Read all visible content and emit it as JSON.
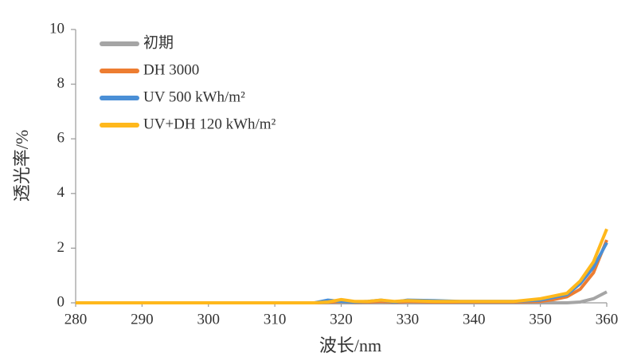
{
  "chart_data": {
    "type": "line",
    "x_label": "波长/nm",
    "y_label": "透光率/%",
    "x": [
      280,
      290,
      300,
      310,
      316,
      318,
      320,
      322,
      324,
      326,
      328,
      330,
      334,
      338,
      342,
      346,
      350,
      352,
      354,
      356,
      358,
      360
    ],
    "series": [
      {
        "name": "初期",
        "color": "#a5a5a5",
        "values": [
          0,
          0,
          0,
          0,
          0,
          0,
          0,
          0,
          0,
          0,
          0,
          0,
          0,
          0,
          0,
          0,
          0,
          0,
          0,
          0.03,
          0.15,
          0.4
        ]
      },
      {
        "name": "DH 3000",
        "color": "#ed7d31",
        "values": [
          0,
          0,
          0,
          0,
          0,
          0.02,
          0.05,
          0.02,
          0.03,
          0.05,
          0.02,
          0.05,
          0.03,
          0.03,
          0.03,
          0.03,
          0.05,
          0.12,
          0.22,
          0.5,
          1.1,
          2.3
        ]
      },
      {
        "name": "UV 500 kWh/m²",
        "color": "#4a8fd6",
        "values": [
          0,
          0,
          0,
          0,
          0,
          0.1,
          0.05,
          0.03,
          0.05,
          0.1,
          0.03,
          0.1,
          0.08,
          0.05,
          0.05,
          0.05,
          0.1,
          0.2,
          0.3,
          0.7,
          1.3,
          2.2
        ]
      },
      {
        "name": "UV+DH 120 kWh/m²",
        "color": "#ffb81c",
        "values": [
          0,
          0,
          0,
          0,
          0,
          0.03,
          0.12,
          0.05,
          0.05,
          0.1,
          0.05,
          0.08,
          0.05,
          0.05,
          0.05,
          0.05,
          0.15,
          0.25,
          0.35,
          0.8,
          1.5,
          2.7
        ]
      }
    ],
    "xlim": [
      280,
      360
    ],
    "xticks": [
      280,
      290,
      300,
      310,
      320,
      330,
      340,
      350,
      360
    ],
    "ylim": [
      0,
      10
    ],
    "yticks": [
      0,
      2,
      4,
      6,
      8,
      10
    ],
    "grid": false,
    "legend": "upper left"
  }
}
